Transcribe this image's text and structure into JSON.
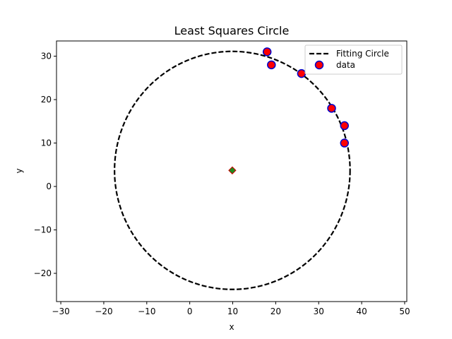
{
  "chart_data": {
    "type": "scatter",
    "title": "Least Squares Circle",
    "xlabel": "x",
    "ylabel": "y",
    "xlim": [
      -31,
      50.5
    ],
    "ylim": [
      -26.5,
      33.5
    ],
    "xticks": [
      -30,
      -20,
      -10,
      0,
      10,
      20,
      30,
      40,
      50
    ],
    "yticks": [
      -20,
      -10,
      0,
      10,
      20,
      30
    ],
    "grid": false,
    "legend_position": "upper-right",
    "circle": {
      "name": "Fitting Circle",
      "center": [
        9.9,
        3.7
      ],
      "radius": 27.4,
      "style": "dashed",
      "color": "#000000"
    },
    "center_marker": {
      "x": 9.9,
      "y": 3.7,
      "shape": "diamond",
      "fill": "#1f8a1f",
      "edge": "#cc0000"
    },
    "series": [
      {
        "name": "data",
        "fill": "#ff0000",
        "edge": "#0000cc",
        "points": [
          {
            "x": 18,
            "y": 31
          },
          {
            "x": 19,
            "y": 28
          },
          {
            "x": 26,
            "y": 26
          },
          {
            "x": 33,
            "y": 18
          },
          {
            "x": 36,
            "y": 14
          },
          {
            "x": 36,
            "y": 10
          }
        ]
      }
    ]
  }
}
